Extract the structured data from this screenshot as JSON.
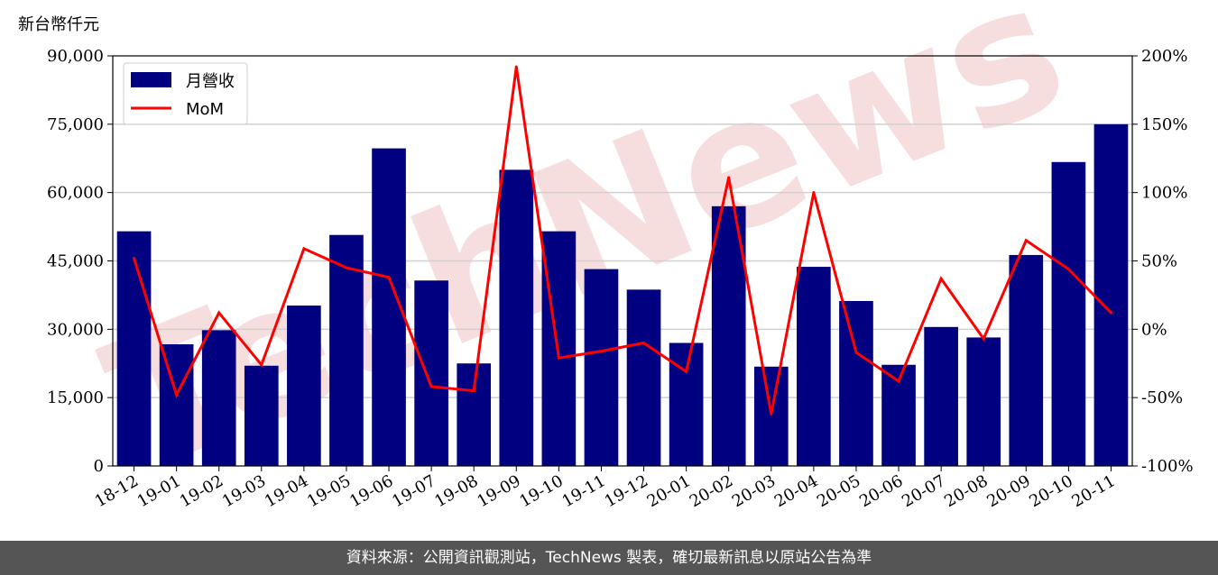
{
  "unit_label": "新台幣仟元",
  "footer_text": "資料來源：公開資訊觀測站，TechNews 製表，確切最新訊息以原站公告為準",
  "watermark": "TechNews",
  "colors": {
    "bar": "#000080",
    "line": "#ff0000",
    "footer_bg": "#555555",
    "watermark": "#f7dede"
  },
  "chart_data": {
    "type": "bar",
    "categories": [
      "18-12",
      "19-01",
      "19-02",
      "19-03",
      "19-04",
      "19-05",
      "19-06",
      "19-07",
      "19-08",
      "19-09",
      "19-10",
      "19-11",
      "19-12",
      "20-01",
      "20-02",
      "20-03",
      "20-04",
      "20-05",
      "20-06",
      "20-07",
      "20-08",
      "20-09",
      "20-10",
      "20-11"
    ],
    "series": [
      {
        "name": "月營收",
        "type": "bar",
        "axis": "left",
        "values": [
          51500,
          26700,
          29800,
          22000,
          35200,
          50700,
          69700,
          40700,
          22500,
          65000,
          51500,
          43200,
          38700,
          27000,
          57000,
          21800,
          43700,
          36200,
          22200,
          30500,
          28200,
          46300,
          66700,
          75000
        ]
      },
      {
        "name": "MoM",
        "type": "line",
        "axis": "right",
        "values": [
          52,
          -48,
          12,
          -26,
          59,
          45,
          38,
          -42,
          -45,
          192,
          -21,
          -16,
          -10,
          -31,
          111,
          -62,
          100,
          -17,
          -38,
          37,
          -7,
          65,
          44,
          12
        ]
      }
    ],
    "ylim_left": [
      0,
      90000
    ],
    "yticks_left": [
      "0",
      "15,000",
      "30,000",
      "45,000",
      "60,000",
      "75,000",
      "90,000"
    ],
    "ylim_right": [
      -100,
      200
    ],
    "yticks_right": [
      "-100%",
      "-50%",
      "0%",
      "50%",
      "100%",
      "150%",
      "200%"
    ],
    "grid": "horizontal",
    "legend_position": "upper-left"
  }
}
